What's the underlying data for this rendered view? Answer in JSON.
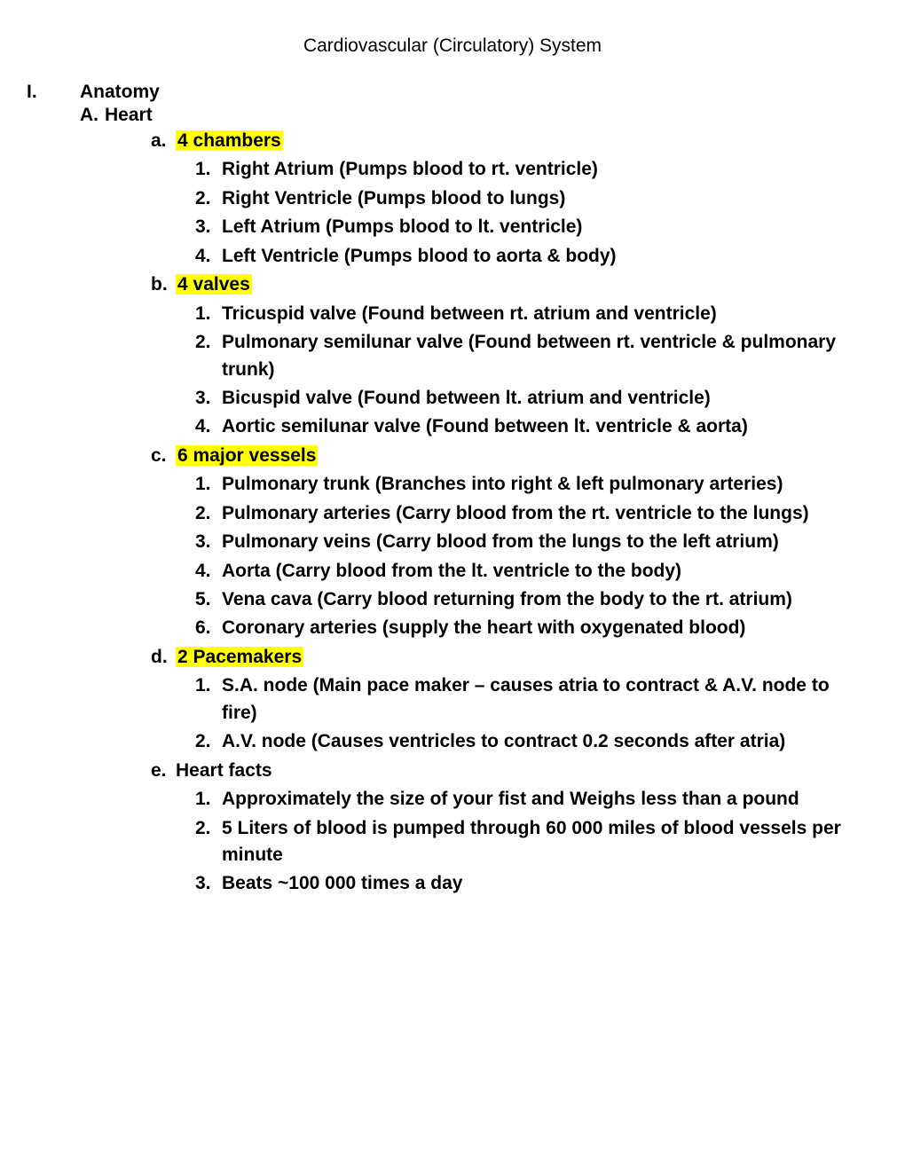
{
  "title": "Cardiovascular (Circulatory) System",
  "highlight_color": "#ffff00",
  "font_family": "Comic Sans MS",
  "text_color": "#000000",
  "background_color": "#ffffff",
  "outline": {
    "I": {
      "marker": "I.",
      "label": "Anatomy",
      "A": {
        "marker": "A.",
        "label": "Heart",
        "a": {
          "marker": "a.",
          "label_prefix": "",
          "label_hl": "4 chambers",
          "items": [
            {
              "marker": "1.",
              "text": "Right Atrium (Pumps blood to rt. ventricle)"
            },
            {
              "marker": "2.",
              "text": "Right Ventricle (Pumps blood to lungs)"
            },
            {
              "marker": "3.",
              "text": "Left Atrium (Pumps blood to lt. ventricle)"
            },
            {
              "marker": "4.",
              "text": "Left Ventricle (Pumps blood to aorta & body)"
            }
          ]
        },
        "b": {
          "marker": "b.",
          "label_hl": "4 valves",
          "items": [
            {
              "marker": "1.",
              "text": "Tricuspid valve (Found between rt. atrium and ventricle)"
            },
            {
              "marker": "2.",
              "text": "Pulmonary semilunar valve (Found between  rt. ventricle & pulmonary trunk)"
            },
            {
              "marker": "3.",
              "text": "Bicuspid valve (Found between lt. atrium and ventricle)"
            },
            {
              "marker": "4.",
              "text": "Aortic semilunar valve (Found between lt. ventricle & aorta)"
            }
          ]
        },
        "c": {
          "marker": "c.",
          "label_hl": "6 major vessels",
          "items": [
            {
              "marker": "1.",
              "text": "Pulmonary trunk (Branches into right & left pulmonary arteries)"
            },
            {
              "marker": "2.",
              "text": "Pulmonary arteries (Carry blood from the rt. ventricle to the lungs)"
            },
            {
              "marker": "3.",
              "text": "Pulmonary veins (Carry blood from the lungs to the left atrium)"
            },
            {
              "marker": "4.",
              "text": "Aorta (Carry blood from the lt. ventricle to the body)"
            },
            {
              "marker": "5.",
              "text": "Vena cava (Carry blood returning from the body to the rt. atrium)"
            },
            {
              "marker": "6.",
              "text": "Coronary arteries (supply the heart with oxygenated blood)"
            }
          ]
        },
        "d": {
          "marker": "d.",
          "label_hl": "2 Pacemakers",
          "items": [
            {
              "marker": "1.",
              "text": "S.A. node (Main pace maker – causes atria to contract & A.V. node to fire)"
            },
            {
              "marker": "2.",
              "text": "A.V. node (Causes ventricles to contract 0.2 seconds after atria)"
            }
          ]
        },
        "e": {
          "marker": "e.",
          "label": "Heart facts",
          "items": [
            {
              "marker": "1.",
              "text": "Approximately the size of your fist and Weighs less than a pound",
              "justify": true
            },
            {
              "marker": "2.",
              "text": "5 Liters of blood is pumped through 60 000 miles of blood vessels per minute"
            },
            {
              "marker": "3.",
              "text": "Beats ~100 000 times a day"
            }
          ]
        }
      }
    }
  }
}
